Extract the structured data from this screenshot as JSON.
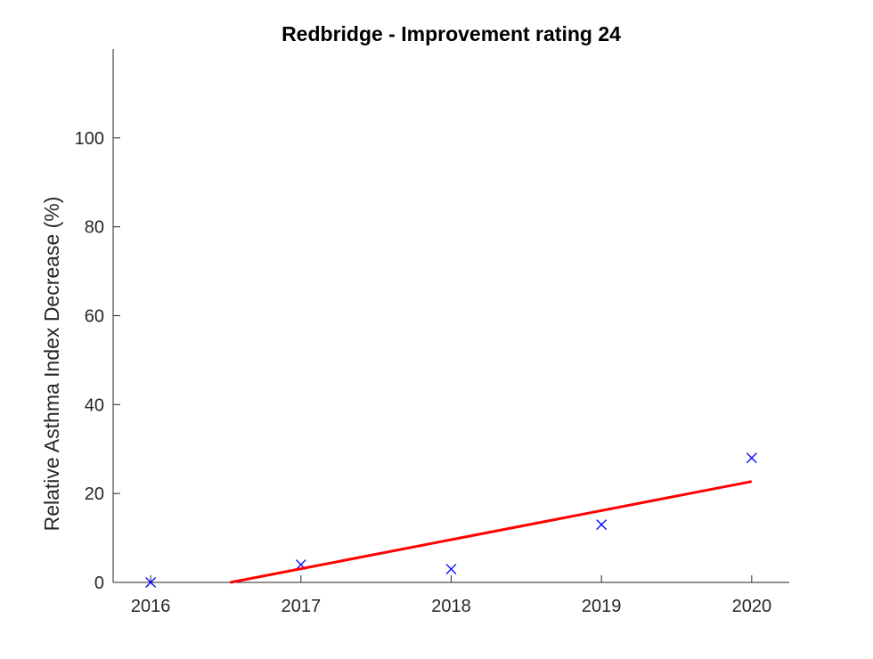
{
  "chart_data": {
    "type": "scatter",
    "title": "Redbridge - Improvement rating 24",
    "xlabel": "",
    "ylabel": "Relative Asthma Index Decrease (%)",
    "xlim": [
      2015.75,
      2020.25
    ],
    "ylim": [
      0,
      120
    ],
    "xticks": [
      2016,
      2017,
      2018,
      2019,
      2020
    ],
    "xtick_labels": [
      "2016",
      "2017",
      "2018",
      "2019",
      "2020"
    ],
    "yticks": [
      0,
      20,
      40,
      60,
      80,
      100
    ],
    "ytick_labels": [
      "0",
      "20",
      "40",
      "60",
      "80",
      "100"
    ],
    "grid": false,
    "series": [
      {
        "kind": "scatter",
        "marker": "x",
        "color": "#0000ff",
        "x": [
          2016,
          2017,
          2018,
          2019,
          2020
        ],
        "y": [
          0,
          4,
          3,
          13,
          28
        ]
      },
      {
        "kind": "line",
        "color": "#ff0000",
        "x": [
          2016.53,
          2020
        ],
        "y": [
          0,
          22.7
        ]
      }
    ]
  }
}
